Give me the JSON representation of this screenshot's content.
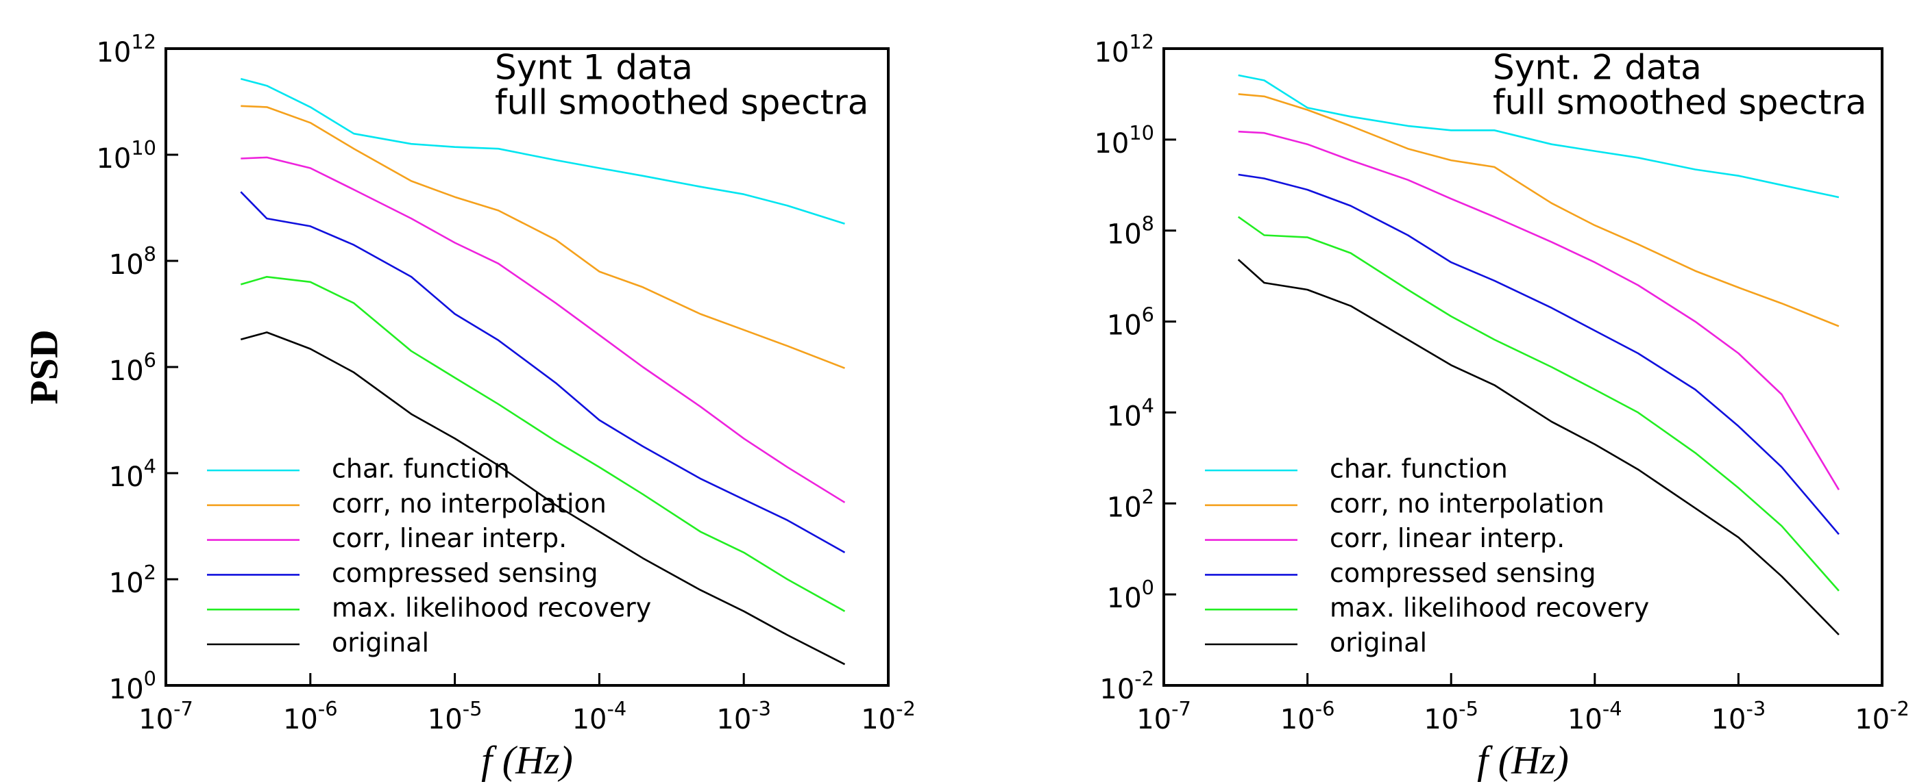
{
  "chart_data": [
    {
      "type": "line",
      "title": "Synt 1 data",
      "subtitle": "full smoothed spectra",
      "ylabel": "PSD",
      "xlabel": "f  (Hz)",
      "xscale": "log",
      "yscale": "log",
      "legend": "lower left",
      "xlim": [
        1e-07,
        0.01
      ],
      "xticks": [
        {
          "value": 1e-07,
          "label": "10^-7"
        },
        {
          "value": 1e-06,
          "label": "10^-6"
        },
        {
          "value": 1e-05,
          "label": "10^-5"
        },
        {
          "value": 0.0001,
          "label": "10^-4"
        },
        {
          "value": 0.001,
          "label": "10^-3"
        },
        {
          "value": 0.01,
          "label": "10^-2"
        }
      ],
      "ylim": [
        1,
        1000000000000.0
      ],
      "yticks": [
        {
          "value": 1,
          "label": "10^0"
        },
        {
          "value": 100,
          "label": "10^2"
        },
        {
          "value": 10000.0,
          "label": "10^4"
        },
        {
          "value": 1000000.0,
          "label": "10^6"
        },
        {
          "value": 100000000.0,
          "label": "10^8"
        },
        {
          "value": 10000000000.0,
          "label": "10^10"
        },
        {
          "value": 1000000000000.0,
          "label": "10^12"
        }
      ],
      "x": [
        3.3e-07,
        5e-07,
        1e-06,
        2e-06,
        5e-06,
        1e-05,
        2e-05,
        5e-05,
        0.0001,
        0.0002,
        0.0005,
        0.001,
        0.002,
        0.005
      ],
      "series": [
        {
          "name": "char. function",
          "color": "#00e5f0",
          "values": [
            270000000000.0,
            200000000000.0,
            79000000000.0,
            25000000000.0,
            16000000000.0,
            14000000000.0,
            13000000000.0,
            7900000000.0,
            5600000000.0,
            4000000000.0,
            2500000000.0,
            1800000000.0,
            1100000000.0,
            500000000.0
          ]
        },
        {
          "name": "corr, no interpolation",
          "color": "#f5a11c",
          "values": [
            83000000000.0,
            79000000000.0,
            40000000000.0,
            13000000000.0,
            3200000000.0,
            1600000000.0,
            890000000.0,
            250000000.0,
            63000000.0,
            32000000.0,
            10000000.0,
            5000000.0,
            2500000.0,
            950000.0
          ]
        },
        {
          "name": "corr, linear interp.",
          "color": "#ee22dd",
          "values": [
            8500000000.0,
            8900000000.0,
            5600000000.0,
            2200000000.0,
            630000000.0,
            220000000.0,
            89000000.0,
            16000000.0,
            4000000.0,
            1000000.0,
            180000.0,
            45000.0,
            13000.0,
            2800
          ]
        },
        {
          "name": "compressed sensing",
          "color": "#1010dd",
          "values": [
            2000000000.0,
            630000000.0,
            450000000.0,
            200000000.0,
            50000000.0,
            10000000.0,
            3200000.0,
            500000.0,
            100000.0,
            32000.0,
            7900,
            3200,
            1300,
            320
          ]
        },
        {
          "name": "max. likelihood recovery",
          "color": "#22ee22",
          "values": [
            36000000.0,
            50000000.0,
            40000000.0,
            16000000.0,
            2000000.0,
            630000.0,
            200000.0,
            40000.0,
            13000.0,
            4000,
            790,
            320,
            100,
            25
          ]
        },
        {
          "name": "original",
          "color": "#000000",
          "values": [
            3300000.0,
            4500000.0,
            2200000.0,
            790000.0,
            130000.0,
            45000.0,
            14000.0,
            2500,
            790,
            250,
            63,
            25,
            8.9,
            2.5
          ]
        }
      ]
    },
    {
      "type": "line",
      "title": "Synt. 2 data",
      "subtitle": "full smoothed spectra",
      "xlabel": "f (Hz)",
      "xscale": "log",
      "yscale": "log",
      "legend": "lower left",
      "xlim": [
        1e-07,
        0.01
      ],
      "xticks": [
        {
          "value": 1e-07,
          "label": "10^-7"
        },
        {
          "value": 1e-06,
          "label": "10^-6"
        },
        {
          "value": 1e-05,
          "label": "10^-5"
        },
        {
          "value": 0.0001,
          "label": "10^-4"
        },
        {
          "value": 0.001,
          "label": "10^-3"
        },
        {
          "value": 0.01,
          "label": "10^-2"
        }
      ],
      "ylim": [
        0.01,
        1000000000000.0
      ],
      "yticks": [
        {
          "value": 0.01,
          "label": "10^-2"
        },
        {
          "value": 1,
          "label": "10^0"
        },
        {
          "value": 100,
          "label": "10^2"
        },
        {
          "value": 10000.0,
          "label": "10^4"
        },
        {
          "value": 1000000.0,
          "label": "10^6"
        },
        {
          "value": 100000000.0,
          "label": "10^8"
        },
        {
          "value": 10000000000.0,
          "label": "10^10"
        },
        {
          "value": 1000000000000.0,
          "label": "10^12"
        }
      ],
      "x": [
        3.3e-07,
        5e-07,
        1e-06,
        2e-06,
        5e-06,
        1e-05,
        2e-05,
        5e-05,
        0.0001,
        0.0002,
        0.0005,
        0.001,
        0.002,
        0.005
      ],
      "series": [
        {
          "name": "char. function",
          "color": "#00e5f0",
          "values": [
            260000000000.0,
            200000000000.0,
            50000000000.0,
            32000000000.0,
            20000000000.0,
            16000000000.0,
            16000000000.0,
            7900000000.0,
            5600000000.0,
            4000000000.0,
            2200000000.0,
            1600000000.0,
            1000000000.0,
            540000000.0
          ]
        },
        {
          "name": "corr, no interpolation",
          "color": "#f5a11c",
          "values": [
            100000000000.0,
            89000000000.0,
            45000000000.0,
            20000000000.0,
            6300000000.0,
            3500000000.0,
            2500000000.0,
            400000000.0,
            130000000.0,
            50000000.0,
            13000000.0,
            5600000.0,
            2500000.0,
            790000.0
          ]
        },
        {
          "name": "corr, linear interp.",
          "color": "#ee22dd",
          "values": [
            15000000000.0,
            14000000000.0,
            7900000000.0,
            3500000000.0,
            1300000000.0,
            500000000.0,
            200000000.0,
            56000000.0,
            20000000.0,
            6300000.0,
            1000000.0,
            200000.0,
            25000.0,
            200
          ]
        },
        {
          "name": "compressed sensing",
          "color": "#1010dd",
          "values": [
            1700000000.0,
            1400000000.0,
            790000000.0,
            350000000.0,
            79000000.0,
            20000000.0,
            7900000.0,
            2000000.0,
            630000.0,
            200000.0,
            32000.0,
            5000,
            630,
            21
          ]
        },
        {
          "name": "max. likelihood recovery",
          "color": "#22ee22",
          "values": [
            200000000.0,
            79000000.0,
            71000000.0,
            32000000.0,
            5000000.0,
            1300000.0,
            400000.0,
            100000.0,
            32000.0,
            10000.0,
            1300,
            220,
            32,
            1.2
          ]
        },
        {
          "name": "original",
          "color": "#000000",
          "values": [
            23000000.0,
            7100000.0,
            5000000.0,
            2200000.0,
            400000.0,
            110000.0,
            40000.0,
            6300,
            2000,
            560,
            79,
            18,
            2.5,
            0.13
          ]
        }
      ]
    }
  ]
}
